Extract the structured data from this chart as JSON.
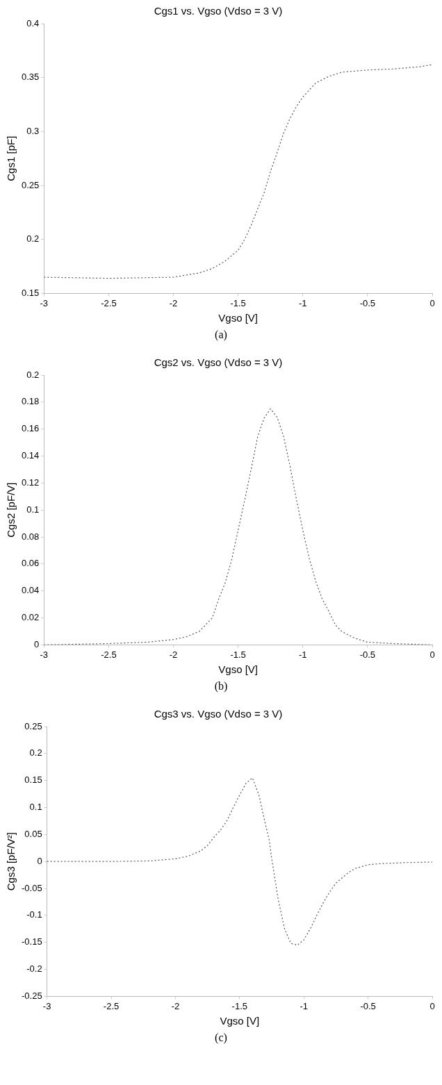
{
  "chart_data": [
    {
      "type": "line",
      "title": "Cgs1 vs. Vgso (Vdso = 3 V)",
      "xlabel": "Vgso [V]",
      "ylabel": "Cgs1 [pF]",
      "annotations": [
        "(a)"
      ],
      "line_style": "dotted",
      "marker": "none",
      "xlim": [
        -3,
        0
      ],
      "xticks": [
        -3,
        -2.5,
        -2,
        -1.5,
        -1,
        -0.5,
        0
      ],
      "ylim": [
        0.15,
        0.4
      ],
      "yticks": [
        0.15,
        0.2,
        0.25,
        0.3,
        0.35,
        0.4
      ],
      "x": [
        -3,
        -2.5,
        -2,
        -1.8,
        -1.7,
        -1.6,
        -1.5,
        -1.45,
        -1.4,
        -1.35,
        -1.3,
        -1.25,
        -1.2,
        -1.15,
        -1.1,
        -1.05,
        -1,
        -0.9,
        -0.8,
        -0.7,
        -0.5,
        -0.3,
        -0.1,
        0
      ],
      "series": [
        {
          "color": "#555555",
          "values": [
            0.165,
            0.164,
            0.165,
            0.169,
            0.173,
            0.18,
            0.19,
            0.2,
            0.213,
            0.228,
            0.243,
            0.263,
            0.28,
            0.298,
            0.312,
            0.323,
            0.332,
            0.345,
            0.351,
            0.355,
            0.357,
            0.358,
            0.36,
            0.362
          ]
        }
      ]
    },
    {
      "type": "line",
      "title": "Cgs2 vs. Vgso (Vdso = 3 V)",
      "xlabel": "Vgso [V]",
      "ylabel": "Cgs2 [pF/V]",
      "annotations": [
        "(b)"
      ],
      "line_style": "dotted",
      "marker": "none",
      "xlim": [
        -3,
        0
      ],
      "xticks": [
        -3,
        -2.5,
        -2,
        -1.5,
        -1,
        -0.5,
        0
      ],
      "ylim": [
        0,
        0.2
      ],
      "yticks": [
        0,
        0.02,
        0.04,
        0.06,
        0.08,
        0.1,
        0.12,
        0.14,
        0.16,
        0.18,
        0.2
      ],
      "x": [
        -3,
        -2.5,
        -2.2,
        -2,
        -1.9,
        -1.8,
        -1.7,
        -1.65,
        -1.6,
        -1.55,
        -1.5,
        -1.45,
        -1.4,
        -1.35,
        -1.3,
        -1.25,
        -1.2,
        -1.15,
        -1.1,
        -1.05,
        -1,
        -0.95,
        -0.9,
        -0.85,
        -0.8,
        -0.75,
        -0.7,
        -0.6,
        -0.5,
        -0.3,
        0
      ],
      "series": [
        {
          "color": "#555555",
          "values": [
            0,
            0.001,
            0.002,
            0.004,
            0.006,
            0.01,
            0.02,
            0.034,
            0.046,
            0.063,
            0.085,
            0.107,
            0.13,
            0.154,
            0.168,
            0.175,
            0.169,
            0.155,
            0.133,
            0.108,
            0.085,
            0.064,
            0.047,
            0.034,
            0.025,
            0.015,
            0.01,
            0.005,
            0.002,
            0.001,
            0
          ]
        }
      ]
    },
    {
      "type": "line",
      "title": "Cgs3 vs. Vgso (Vdso = 3 V)",
      "xlabel": "Vgso [V]",
      "ylabel": "Cgs3 [pF/V²]",
      "annotations": [
        "(c)"
      ],
      "line_style": "dotted",
      "marker": "none",
      "xlim": [
        -3,
        0
      ],
      "xticks": [
        -3,
        -2.5,
        -2,
        -1.5,
        -1,
        -0.5,
        0
      ],
      "ylim": [
        -0.25,
        0.25
      ],
      "yticks": [
        -0.25,
        -0.2,
        -0.15,
        -0.1,
        -0.05,
        0,
        0.05,
        0.1,
        0.15,
        0.2,
        0.25
      ],
      "x": [
        -3,
        -2.5,
        -2.2,
        -2,
        -1.9,
        -1.8,
        -1.75,
        -1.7,
        -1.65,
        -1.6,
        -1.55,
        -1.5,
        -1.45,
        -1.4,
        -1.35,
        -1.3,
        -1.27,
        -1.25,
        -1.2,
        -1.15,
        -1.1,
        -1.05,
        -1,
        -0.95,
        -0.9,
        -0.85,
        -0.8,
        -0.75,
        -0.7,
        -0.65,
        -0.6,
        -0.5,
        -0.4,
        -0.2,
        0
      ],
      "series": [
        {
          "color": "#555555",
          "values": [
            0,
            0,
            0.001,
            0.005,
            0.01,
            0.02,
            0.03,
            0.045,
            0.058,
            0.075,
            0.1,
            0.123,
            0.145,
            0.155,
            0.123,
            0.07,
            0.04,
            0.005,
            -0.07,
            -0.125,
            -0.152,
            -0.155,
            -0.145,
            -0.125,
            -0.1,
            -0.077,
            -0.057,
            -0.04,
            -0.03,
            -0.02,
            -0.013,
            -0.006,
            -0.004,
            -0.002,
            -0.001
          ]
        }
      ]
    }
  ]
}
